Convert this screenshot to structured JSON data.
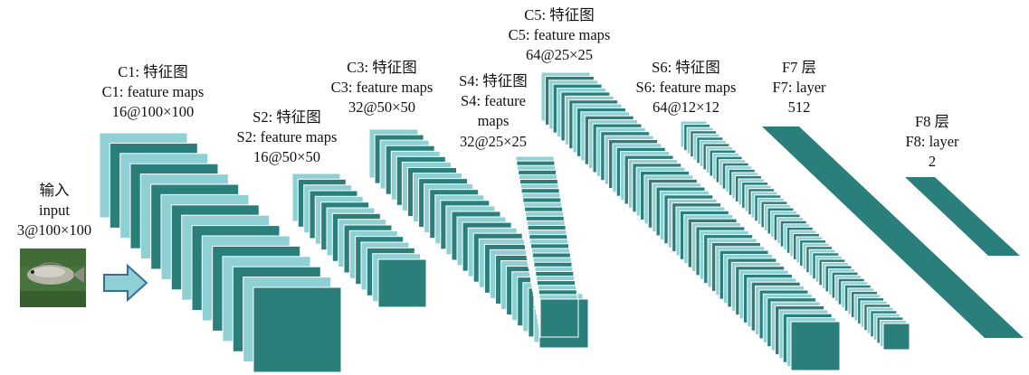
{
  "colors": {
    "light_map": "#8fd0d5",
    "dark_map": "#2a7f7a",
    "border": "#ffffff",
    "arrow_fill": "#8fd0d5",
    "arrow_stroke": "#3a6d96"
  },
  "input": {
    "title": "输入",
    "subtitle": "input",
    "size": "3@100×100",
    "image_icon": "fish-photo"
  },
  "layers": [
    {
      "id": "c1",
      "label_cn": "C1: 特征图",
      "label_en": "C1: feature maps",
      "size": "16@100×100"
    },
    {
      "id": "s2",
      "label_cn": "S2: 特征图",
      "label_en": "S2: feature maps",
      "size": "16@50×50"
    },
    {
      "id": "c3",
      "label_cn": "C3: 特征图",
      "label_en": "C3: feature maps",
      "size": "32@50×50"
    },
    {
      "id": "s4",
      "label_cn": "S4: 特征图",
      "label_en_1": "S4: feature",
      "label_en_2": "maps",
      "size": "32@25×25"
    },
    {
      "id": "c5",
      "label_cn": "C5: 特征图",
      "label_en": "C5: feature maps",
      "size": "64@25×25"
    },
    {
      "id": "s6",
      "label_cn": "S6: 特征图",
      "label_en": "S6: feature maps",
      "size": "64@12×12"
    },
    {
      "id": "f7",
      "label_cn": "F7 层",
      "label_en": "F7: layer",
      "size": "512"
    },
    {
      "id": "f8",
      "label_cn": "F8 层",
      "label_en": "F8: layer",
      "size": "2"
    }
  ]
}
